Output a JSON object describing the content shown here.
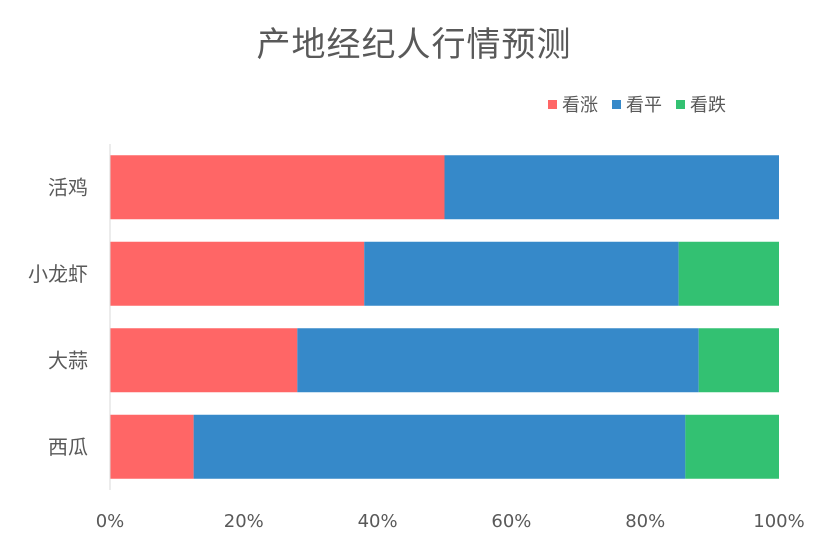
{
  "chart_data": {
    "type": "bar",
    "orientation": "horizontal",
    "stacked": "percent",
    "title": "产地经纪人行情预测",
    "categories": [
      "活鸡",
      "小龙虾",
      "大蒜",
      "西瓜"
    ],
    "series": [
      {
        "name": "看涨",
        "color": "#ff6666",
        "values": [
          50,
          38,
          28,
          12.5
        ]
      },
      {
        "name": "看平",
        "color": "#3689c9",
        "values": [
          50,
          47,
          60,
          73.5
        ]
      },
      {
        "name": "看跌",
        "color": "#33c172",
        "values": [
          0,
          15,
          12,
          14
        ]
      }
    ],
    "xlim": [
      0,
      100
    ],
    "x_ticks": [
      "0%",
      "20%",
      "40%",
      "60%",
      "80%",
      "100%"
    ],
    "legend_position": "top-right",
    "grid": false
  }
}
